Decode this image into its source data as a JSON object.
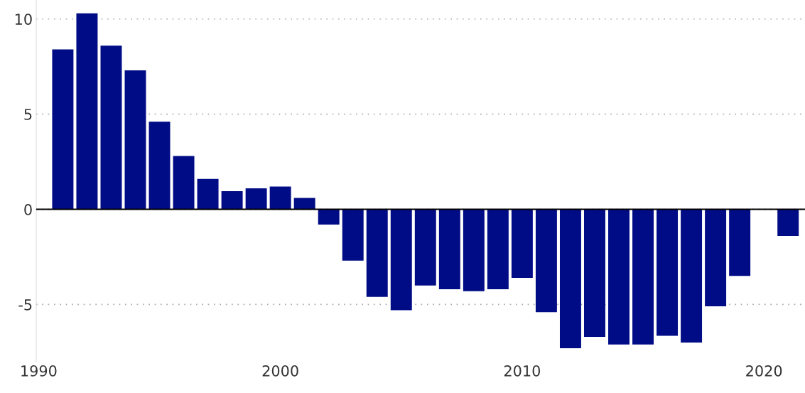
{
  "chart_data": {
    "type": "bar",
    "x": [
      1991,
      1992,
      1993,
      1994,
      1995,
      1996,
      1997,
      1998,
      1999,
      2000,
      2001,
      2002,
      2003,
      2004,
      2005,
      2006,
      2007,
      2008,
      2009,
      2010,
      2011,
      2012,
      2013,
      2014,
      2015,
      2016,
      2017,
      2018,
      2019,
      2020,
      2021
    ],
    "values": [
      8.4,
      10.3,
      8.6,
      7.3,
      4.6,
      2.8,
      1.6,
      0.95,
      1.1,
      1.2,
      0.6,
      -0.8,
      -2.7,
      -4.6,
      -5.3,
      -4.0,
      -4.2,
      -4.3,
      -4.2,
      -3.6,
      -5.4,
      -7.3,
      -6.7,
      -7.1,
      -7.1,
      -6.65,
      -7.0,
      -5.1,
      -3.5,
      null,
      -1.4
    ],
    "color": "#000c85",
    "xlim": [
      1989.9,
      2021.7
    ],
    "xticks": [
      1990,
      2000,
      2010,
      2020
    ],
    "ylim": [
      -8,
      11
    ],
    "yticks": [
      -5,
      0,
      5,
      10
    ],
    "grid": "y",
    "ref_lines": [
      {
        "axis": "y",
        "value": 0,
        "color": "#000000",
        "line_style": "solid"
      }
    ]
  }
}
